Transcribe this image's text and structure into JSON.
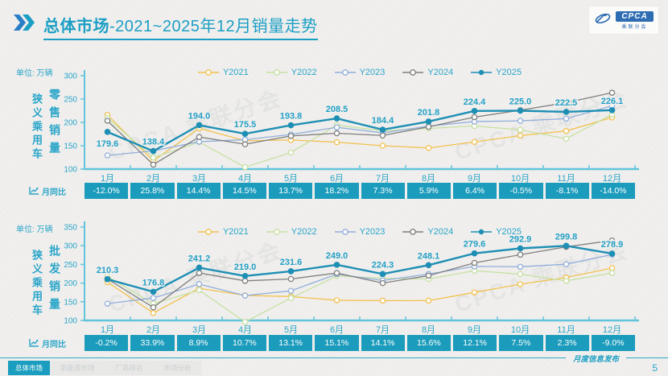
{
  "header": {
    "title_strong": "总体市场",
    "title_rest": "-2021~2025年12月销量走势",
    "logo": {
      "brand": "CPCA",
      "caption": "乘联分会"
    }
  },
  "watermark": "CPCA 乘联分会",
  "colors": {
    "accent": "#1B9EC4",
    "cell_bg": "#1C9CBC",
    "axis": "#62C4DB",
    "y2021": "#F2C14E",
    "y2022": "#C7E0A2",
    "y2023": "#92AEDB",
    "y2024": "#7F7F7F",
    "y2025": "#1E8FB4"
  },
  "chart_data": [
    {
      "type": "line",
      "segment_label": "狭义乘用车",
      "metric_label": "零售销量",
      "unit_label": "单位: 万辆",
      "months": [
        "1月",
        "2月",
        "3月",
        "4月",
        "5月",
        "6月",
        "7月",
        "8月",
        "9月",
        "10月",
        "11月",
        "12月"
      ],
      "ylim": [
        100,
        300
      ],
      "yticks": [
        100,
        150,
        200,
        250,
        300
      ],
      "series": [
        {
          "name": "Y2021",
          "color": "#F2C14E",
          "marker": "open",
          "values": [
            216.0,
            117.7,
            187.4,
            160.8,
            162.3,
            157.5,
            150.0,
            145.3,
            158.2,
            171.7,
            181.6,
            210.5
          ]
        },
        {
          "name": "Y2022",
          "color": "#C7E0A2",
          "marker": "open",
          "values": [
            209.2,
            124.6,
            157.9,
            104.2,
            135.4,
            194.3,
            181.8,
            187.1,
            192.2,
            184.0,
            164.9,
            216.9
          ]
        },
        {
          "name": "Y2023",
          "color": "#92AEDB",
          "marker": "open",
          "values": [
            129.3,
            139.0,
            158.7,
            163.0,
            174.2,
            189.4,
            177.5,
            192.0,
            201.8,
            203.3,
            208.0,
            235.3
          ]
        },
        {
          "name": "Y2024",
          "color": "#7F7F7F",
          "marker": "open",
          "values": [
            203.5,
            109.5,
            168.7,
            153.2,
            171.0,
            176.7,
            172.0,
            190.5,
            211.2,
            226.1,
            242.3,
            263.5
          ]
        },
        {
          "name": "Y2025",
          "color": "#1E8FB4",
          "marker": "filled",
          "values": [
            179.6,
            138.4,
            194.0,
            175.5,
            193.8,
            208.5,
            184.4,
            201.8,
            224.4,
            225.0,
            222.5,
            226.1
          ]
        }
      ],
      "labels": [
        "179.6",
        "138.4",
        "194.0",
        "175.5",
        "193.8",
        "208.5",
        "184.4",
        "201.8",
        "224.4",
        "225.0",
        "222.5",
        "226.1"
      ],
      "label_below": [
        0
      ],
      "mom_label": "月同比",
      "mom": [
        "-12.0%",
        "25.8%",
        "14.4%",
        "14.5%",
        "13.7%",
        "18.2%",
        "7.3%",
        "5.9%",
        "6.4%",
        "-0.5%",
        "-8.1%",
        "-14.0%"
      ]
    },
    {
      "type": "line",
      "segment_label": "狭义乘用车",
      "metric_label": "批发销量",
      "unit_label": "单位: 万辆",
      "months": [
        "1月",
        "2月",
        "3月",
        "4月",
        "5月",
        "6月",
        "7月",
        "8月",
        "9月",
        "10月",
        "11月",
        "12月"
      ],
      "ylim": [
        100,
        350
      ],
      "yticks": [
        100,
        150,
        200,
        250,
        300,
        350
      ],
      "series": [
        {
          "name": "Y2021",
          "color": "#F2C14E",
          "marker": "open",
          "values": [
            202.5,
            120.0,
            186.0,
            167.0,
            164.0,
            154.0,
            153.0,
            153.0,
            175.0,
            197.0,
            215.0,
            240.0
          ]
        },
        {
          "name": "Y2022",
          "color": "#C7E0A2",
          "marker": "open",
          "values": [
            218.0,
            145.0,
            181.0,
            96.0,
            160.0,
            219.0,
            213.0,
            211.0,
            233.0,
            224.0,
            206.0,
            227.0
          ]
        },
        {
          "name": "Y2023",
          "color": "#92AEDB",
          "marker": "open",
          "values": [
            144.9,
            160.2,
            197.2,
            166.6,
            179.3,
            223.9,
            207.0,
            224.2,
            244.7,
            243.7,
            250.5,
            276.4
          ]
        },
        {
          "name": "Y2024",
          "color": "#7F7F7F",
          "marker": "open",
          "values": [
            211.0,
            135.0,
            227.0,
            206.0,
            211.0,
            227.0,
            200.0,
            220.0,
            254.0,
            276.0,
            297.0,
            314.0
          ]
        },
        {
          "name": "Y2025",
          "color": "#1E8FB4",
          "marker": "filled",
          "values": [
            210.3,
            176.8,
            241.2,
            219.0,
            231.6,
            249.0,
            224.3,
            248.1,
            279.6,
            292.9,
            299.8,
            278.9
          ]
        }
      ],
      "labels": [
        "210.3",
        "176.8",
        "241.2",
        "219.0",
        "231.6",
        "249.0",
        "224.3",
        "248.1",
        "279.6",
        "292.9",
        "299.8",
        "278.9"
      ],
      "label_below": [],
      "mom_label": "月同比",
      "mom": [
        "-0.2%",
        "33.9%",
        "8.9%",
        "10.7%",
        "13.1%",
        "15.1%",
        "14.1%",
        "15.6%",
        "12.1%",
        "7.5%",
        "2.3%",
        "-9.0%"
      ]
    }
  ],
  "footer": {
    "tabs": [
      {
        "label": "总体市场",
        "active": true
      },
      {
        "label": "新能源市场",
        "active": false
      },
      {
        "label": "厂商排名",
        "active": false
      },
      {
        "label": "市场分析",
        "active": false
      }
    ],
    "right_text": "月度信息发布",
    "page": "5"
  }
}
